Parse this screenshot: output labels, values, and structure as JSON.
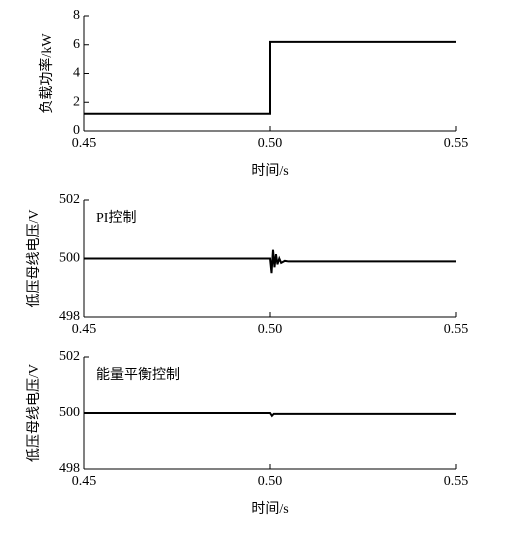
{
  "chart_data": [
    {
      "type": "line",
      "xlabel": "时间/s",
      "ylabel": "负载功率/kW",
      "xlim": [
        0.45,
        0.55
      ],
      "xticks": [
        0.45,
        {
          "value": 0.5,
          "label": "0.50"
        },
        0.55
      ],
      "ylim": [
        0,
        8
      ],
      "yticks": [
        0,
        2,
        4,
        6,
        8
      ],
      "series": [
        {
          "color": "#000000",
          "x": [
            0.45,
            0.5,
            0.5,
            0.55
          ],
          "values": [
            1.2,
            1.2,
            6.2,
            6.2
          ]
        }
      ]
    },
    {
      "type": "line",
      "ylabel": "低压母线电压/V",
      "annotation": "PI控制",
      "xlim": [
        0.45,
        0.55
      ],
      "xticks": [
        0.45,
        {
          "value": 0.5,
          "label": "0.50"
        },
        0.55
      ],
      "ylim": [
        498,
        502
      ],
      "yticks": [
        498,
        500,
        502
      ],
      "series": [
        {
          "color": "#000000",
          "x": [
            0.45,
            0.5,
            0.5004,
            0.5008,
            0.5012,
            0.5016,
            0.502,
            0.5025,
            0.503,
            0.504,
            0.505,
            0.55
          ],
          "values": [
            500,
            500,
            499.5,
            500.3,
            499.7,
            500.15,
            499.8,
            500.0,
            499.85,
            499.92,
            499.9,
            499.9
          ]
        }
      ]
    },
    {
      "type": "line",
      "xlabel": "时间/s",
      "ylabel": "低压母线电压/V",
      "annotation": "能量平衡控制",
      "xlim": [
        0.45,
        0.55
      ],
      "xticks": [
        0.45,
        {
          "value": 0.5,
          "label": "0.50"
        },
        0.55
      ],
      "ylim": [
        498,
        502
      ],
      "yticks": [
        498,
        500,
        502
      ],
      "series": [
        {
          "color": "#000000",
          "x": [
            0.45,
            0.5,
            0.5005,
            0.501,
            0.55
          ],
          "values": [
            500,
            500,
            499.9,
            499.97,
            499.97
          ]
        }
      ]
    }
  ]
}
